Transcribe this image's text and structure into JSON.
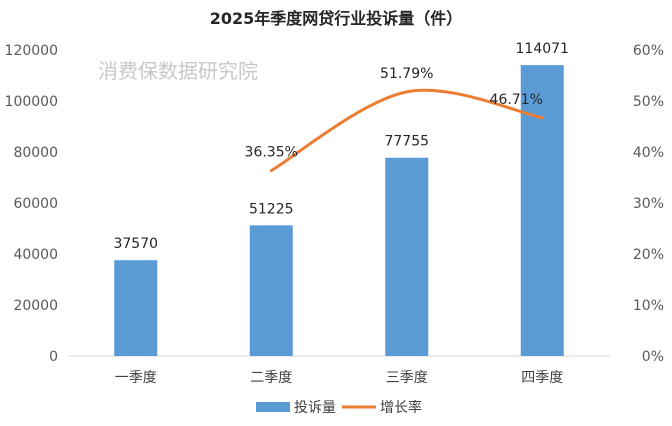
{
  "chart_data": {
    "type": "bar",
    "title": "2025年季度网贷行业投诉量（件）",
    "watermark": "消费保数据研究院",
    "categories": [
      "一季度",
      "二季度",
      "三季度",
      "四季度"
    ],
    "series": [
      {
        "name": "投诉量",
        "type": "bar",
        "axis": "left",
        "color": "#5b9bd5",
        "values": [
          37570,
          51225,
          77755,
          114071
        ],
        "labels": [
          "37570",
          "51225",
          "77755",
          "114071"
        ]
      },
      {
        "name": "增长率",
        "type": "line",
        "axis": "right",
        "color": "#ed7d31",
        "values": [
          null,
          36.35,
          51.79,
          46.71
        ],
        "labels": [
          "",
          "36.35%",
          "51.79%",
          "46.71%"
        ]
      }
    ],
    "y_left": {
      "min": 0,
      "max": 120000,
      "step": 20000,
      "ticks": [
        "0",
        "20000",
        "40000",
        "60000",
        "80000",
        "100000",
        "120000"
      ]
    },
    "y_right": {
      "min": 0,
      "max": 60,
      "step": 10,
      "ticks": [
        "0%",
        "10%",
        "20%",
        "30%",
        "40%",
        "50%",
        "60%"
      ]
    },
    "grid": false,
    "legend": "bottom"
  }
}
